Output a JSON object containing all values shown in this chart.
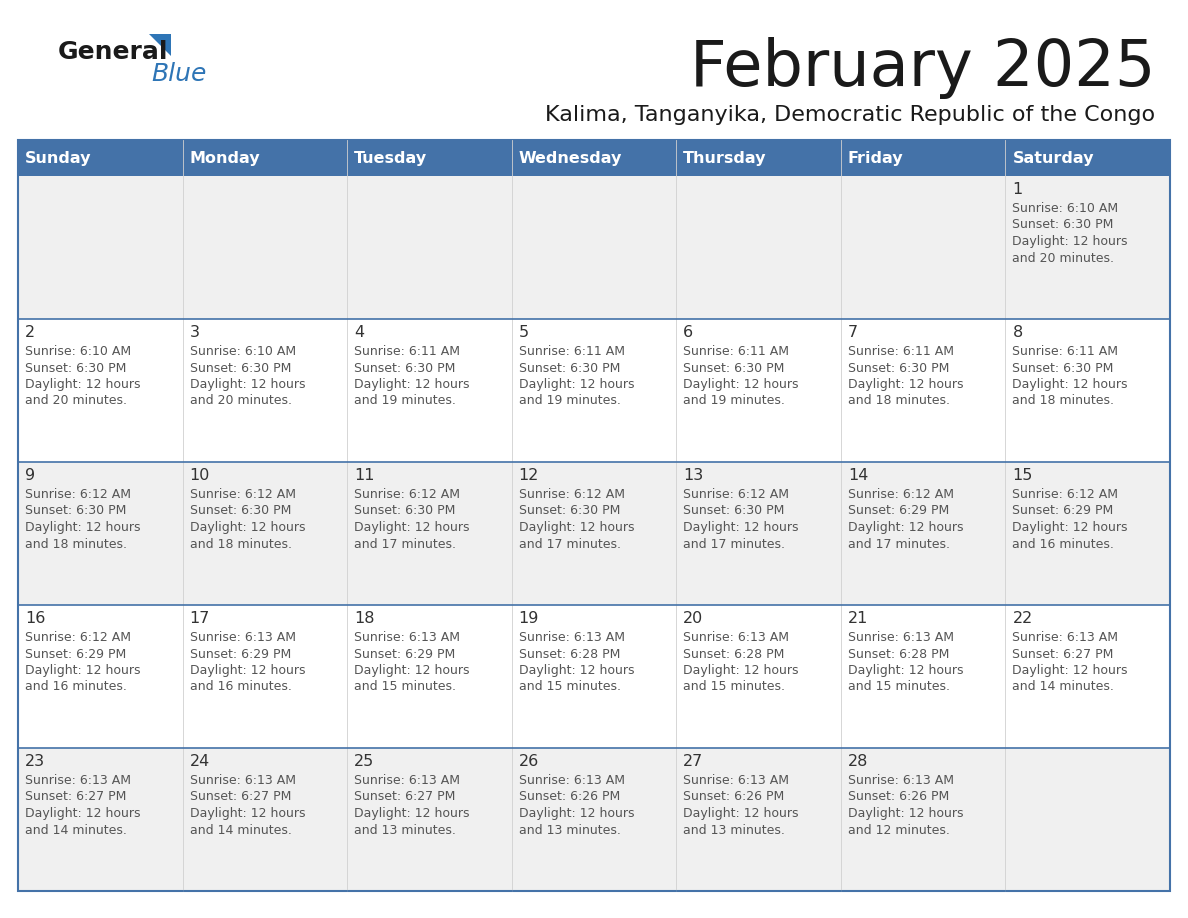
{
  "title": "February 2025",
  "subtitle": "Kalima, Tanganyika, Democratic Republic of the Congo",
  "header_bg": "#4472a8",
  "header_text_color": "#ffffff",
  "row_bg_gray": "#f0f0f0",
  "row_bg_white": "#ffffff",
  "week_divider_color": "#4472a8",
  "cell_divider_color": "#cccccc",
  "title_color": "#1a1a1a",
  "subtitle_color": "#1a1a1a",
  "day_num_color": "#333333",
  "info_color": "#555555",
  "days_of_week": [
    "Sunday",
    "Monday",
    "Tuesday",
    "Wednesday",
    "Thursday",
    "Friday",
    "Saturday"
  ],
  "calendar_data": [
    {
      "day": 1,
      "col": 6,
      "row": 0,
      "sunrise": "6:10 AM",
      "sunset": "6:30 PM",
      "daylight_suffix": "20 minutes."
    },
    {
      "day": 2,
      "col": 0,
      "row": 1,
      "sunrise": "6:10 AM",
      "sunset": "6:30 PM",
      "daylight_suffix": "20 minutes."
    },
    {
      "day": 3,
      "col": 1,
      "row": 1,
      "sunrise": "6:10 AM",
      "sunset": "6:30 PM",
      "daylight_suffix": "20 minutes."
    },
    {
      "day": 4,
      "col": 2,
      "row": 1,
      "sunrise": "6:11 AM",
      "sunset": "6:30 PM",
      "daylight_suffix": "19 minutes."
    },
    {
      "day": 5,
      "col": 3,
      "row": 1,
      "sunrise": "6:11 AM",
      "sunset": "6:30 PM",
      "daylight_suffix": "19 minutes."
    },
    {
      "day": 6,
      "col": 4,
      "row": 1,
      "sunrise": "6:11 AM",
      "sunset": "6:30 PM",
      "daylight_suffix": "19 minutes."
    },
    {
      "day": 7,
      "col": 5,
      "row": 1,
      "sunrise": "6:11 AM",
      "sunset": "6:30 PM",
      "daylight_suffix": "18 minutes."
    },
    {
      "day": 8,
      "col": 6,
      "row": 1,
      "sunrise": "6:11 AM",
      "sunset": "6:30 PM",
      "daylight_suffix": "18 minutes."
    },
    {
      "day": 9,
      "col": 0,
      "row": 2,
      "sunrise": "6:12 AM",
      "sunset": "6:30 PM",
      "daylight_suffix": "18 minutes."
    },
    {
      "day": 10,
      "col": 1,
      "row": 2,
      "sunrise": "6:12 AM",
      "sunset": "6:30 PM",
      "daylight_suffix": "18 minutes."
    },
    {
      "day": 11,
      "col": 2,
      "row": 2,
      "sunrise": "6:12 AM",
      "sunset": "6:30 PM",
      "daylight_suffix": "17 minutes."
    },
    {
      "day": 12,
      "col": 3,
      "row": 2,
      "sunrise": "6:12 AM",
      "sunset": "6:30 PM",
      "daylight_suffix": "17 minutes."
    },
    {
      "day": 13,
      "col": 4,
      "row": 2,
      "sunrise": "6:12 AM",
      "sunset": "6:30 PM",
      "daylight_suffix": "17 minutes."
    },
    {
      "day": 14,
      "col": 5,
      "row": 2,
      "sunrise": "6:12 AM",
      "sunset": "6:29 PM",
      "daylight_suffix": "17 minutes."
    },
    {
      "day": 15,
      "col": 6,
      "row": 2,
      "sunrise": "6:12 AM",
      "sunset": "6:29 PM",
      "daylight_suffix": "16 minutes."
    },
    {
      "day": 16,
      "col": 0,
      "row": 3,
      "sunrise": "6:12 AM",
      "sunset": "6:29 PM",
      "daylight_suffix": "16 minutes."
    },
    {
      "day": 17,
      "col": 1,
      "row": 3,
      "sunrise": "6:13 AM",
      "sunset": "6:29 PM",
      "daylight_suffix": "16 minutes."
    },
    {
      "day": 18,
      "col": 2,
      "row": 3,
      "sunrise": "6:13 AM",
      "sunset": "6:29 PM",
      "daylight_suffix": "15 minutes."
    },
    {
      "day": 19,
      "col": 3,
      "row": 3,
      "sunrise": "6:13 AM",
      "sunset": "6:28 PM",
      "daylight_suffix": "15 minutes."
    },
    {
      "day": 20,
      "col": 4,
      "row": 3,
      "sunrise": "6:13 AM",
      "sunset": "6:28 PM",
      "daylight_suffix": "15 minutes."
    },
    {
      "day": 21,
      "col": 5,
      "row": 3,
      "sunrise": "6:13 AM",
      "sunset": "6:28 PM",
      "daylight_suffix": "15 minutes."
    },
    {
      "day": 22,
      "col": 6,
      "row": 3,
      "sunrise": "6:13 AM",
      "sunset": "6:27 PM",
      "daylight_suffix": "14 minutes."
    },
    {
      "day": 23,
      "col": 0,
      "row": 4,
      "sunrise": "6:13 AM",
      "sunset": "6:27 PM",
      "daylight_suffix": "14 minutes."
    },
    {
      "day": 24,
      "col": 1,
      "row": 4,
      "sunrise": "6:13 AM",
      "sunset": "6:27 PM",
      "daylight_suffix": "14 minutes."
    },
    {
      "day": 25,
      "col": 2,
      "row": 4,
      "sunrise": "6:13 AM",
      "sunset": "6:27 PM",
      "daylight_suffix": "13 minutes."
    },
    {
      "day": 26,
      "col": 3,
      "row": 4,
      "sunrise": "6:13 AM",
      "sunset": "6:26 PM",
      "daylight_suffix": "13 minutes."
    },
    {
      "day": 27,
      "col": 4,
      "row": 4,
      "sunrise": "6:13 AM",
      "sunset": "6:26 PM",
      "daylight_suffix": "13 minutes."
    },
    {
      "day": 28,
      "col": 5,
      "row": 4,
      "sunrise": "6:13 AM",
      "sunset": "6:26 PM",
      "daylight_suffix": "12 minutes."
    }
  ]
}
